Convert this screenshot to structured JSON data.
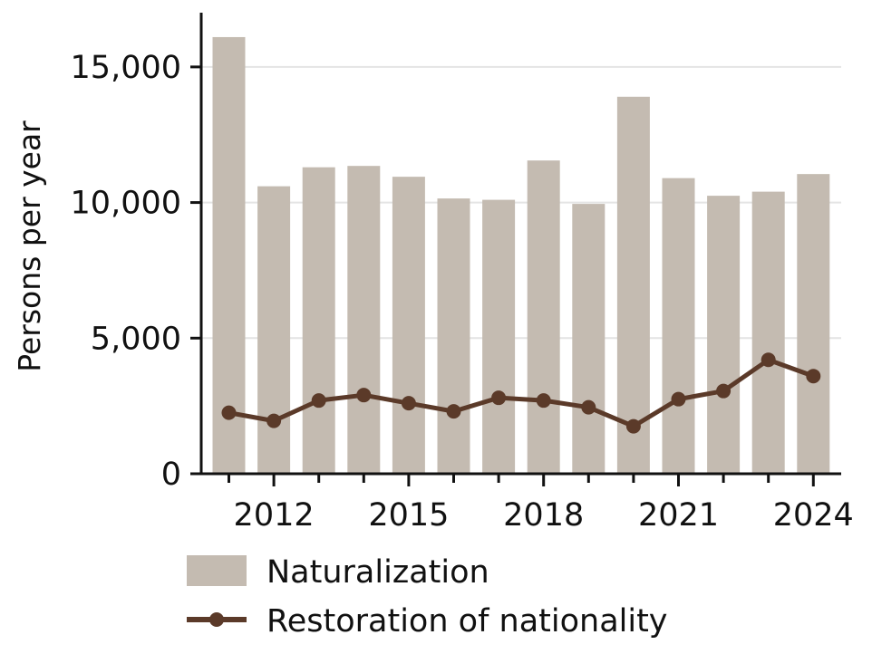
{
  "chart_data": {
    "type": "bar",
    "title": "",
    "xlabel": "",
    "ylabel": "Persons per year",
    "ylim": [
      0,
      17000
    ],
    "yticks": [
      0,
      5000,
      10000,
      15000
    ],
    "ytick_labels": [
      "0",
      "5,000",
      "10,000",
      "15,000"
    ],
    "xticks": [
      2012,
      2015,
      2018,
      2021,
      2024
    ],
    "xtick_labels": [
      "2012",
      "2015",
      "2018",
      "2021",
      "2024"
    ],
    "x": [
      2011,
      2012,
      2013,
      2014,
      2015,
      2016,
      2017,
      2018,
      2019,
      2020,
      2021,
      2022,
      2023,
      2024
    ],
    "grid": "horizontal",
    "legend_position": "bottom",
    "series": [
      {
        "name": "Naturalization",
        "type": "bar",
        "color": "#c4bbb1",
        "values": [
          16100,
          10600,
          11300,
          11350,
          10950,
          10150,
          10100,
          11550,
          9950,
          13900,
          10900,
          10250,
          10400,
          11050
        ]
      },
      {
        "name": "Restoration of nationality",
        "type": "line",
        "color": "#5b3a29",
        "values": [
          2250,
          1950,
          2700,
          2900,
          2600,
          2300,
          2800,
          2700,
          2450,
          1750,
          2750,
          3050,
          4200,
          3600
        ]
      }
    ]
  }
}
